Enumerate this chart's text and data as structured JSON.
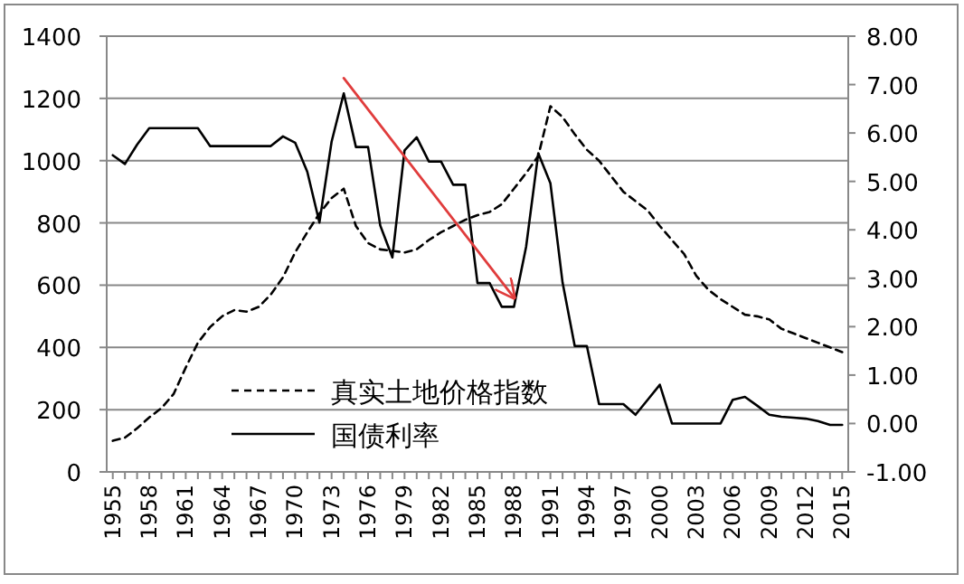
{
  "chart_data": {
    "type": "line",
    "x": [
      1955,
      1956,
      1957,
      1958,
      1959,
      1960,
      1961,
      1962,
      1963,
      1964,
      1965,
      1966,
      1967,
      1968,
      1969,
      1970,
      1971,
      1972,
      1973,
      1974,
      1975,
      1976,
      1977,
      1978,
      1979,
      1980,
      1981,
      1982,
      1983,
      1984,
      1985,
      1986,
      1987,
      1988,
      1989,
      1990,
      1991,
      1992,
      1993,
      1994,
      1995,
      1996,
      1997,
      1998,
      1999,
      2000,
      2001,
      2002,
      2003,
      2004,
      2005,
      2006,
      2007,
      2008,
      2009,
      2010,
      2011,
      2012,
      2013,
      2014,
      2015
    ],
    "series": [
      {
        "name": "真实土地价格指数",
        "color": "#000000",
        "line_style": "dashed",
        "values": [
          100,
          110,
          140,
          175,
          205,
          250,
          335,
          415,
          465,
          500,
          520,
          515,
          530,
          570,
          625,
          705,
          770,
          830,
          880,
          910,
          790,
          735,
          715,
          710,
          705,
          715,
          745,
          770,
          790,
          810,
          825,
          835,
          860,
          910,
          960,
          1015,
          1175,
          1140,
          1085,
          1035,
          1000,
          950,
          900,
          870,
          840,
          790,
          745,
          700,
          630,
          585,
          555,
          530,
          505,
          500,
          490,
          460,
          445,
          430,
          415,
          400,
          385
        ]
      },
      {
        "name": "国债利率",
        "color": "#000000",
        "line_style": "solid",
        "axis": "y2",
        "values": [
          5.54,
          5.36,
          5.76,
          6.1,
          6.1,
          6.1,
          6.1,
          6.1,
          5.73,
          5.73,
          5.73,
          5.73,
          5.73,
          5.73,
          5.93,
          5.8,
          5.2,
          4.15,
          5.82,
          6.82,
          5.71,
          5.71,
          4.09,
          3.43,
          5.64,
          5.91,
          5.41,
          5.41,
          4.93,
          4.93,
          2.9,
          2.9,
          2.41,
          2.41,
          3.65,
          5.58,
          4.96,
          2.91,
          1.6,
          1.6,
          0.4,
          0.4,
          0.4,
          0.18,
          0.49,
          0.8,
          0,
          0,
          0,
          0,
          0,
          0.49,
          0.55,
          0.37,
          0.18,
          0.14,
          0.12,
          0.1,
          0.05,
          -0.03,
          -0.03
        ]
      },
      {
        "type": "line",
        "color": "#e03c3c",
        "line_style": "solid",
        "x": [
          1974,
          1988
        ],
        "values": [
          1265,
          560
        ]
      }
    ],
    "xlim": [
      1954.5,
      2015.5
    ],
    "xticks": [
      1955,
      {
        "value": 1956,
        "label": null
      },
      {
        "value": 1957,
        "label": null
      },
      1958,
      {
        "value": 1959,
        "label": null
      },
      {
        "value": 1960,
        "label": null
      },
      1961,
      {
        "value": 1962,
        "label": null
      },
      {
        "value": 1963,
        "label": null
      },
      1964,
      {
        "value": 1965,
        "label": null
      },
      {
        "value": 1966,
        "label": null
      },
      1967,
      {
        "value": 1968,
        "label": null
      },
      {
        "value": 1969,
        "label": null
      },
      1970,
      {
        "value": 1971,
        "label": null
      },
      {
        "value": 1972,
        "label": null
      },
      1973,
      {
        "value": 1974,
        "label": null
      },
      {
        "value": 1975,
        "label": null
      },
      1976,
      {
        "value": 1977,
        "label": null
      },
      {
        "value": 1978,
        "label": null
      },
      1979,
      {
        "value": 1980,
        "label": null
      },
      {
        "value": 1981,
        "label": null
      },
      1982,
      {
        "value": 1983,
        "label": null
      },
      {
        "value": 1984,
        "label": null
      },
      1985,
      {
        "value": 1986,
        "label": null
      },
      {
        "value": 1987,
        "label": null
      },
      1988,
      {
        "value": 1989,
        "label": null
      },
      {
        "value": 1990,
        "label": null
      },
      1991,
      {
        "value": 1992,
        "label": null
      },
      {
        "value": 1993,
        "label": null
      },
      1994,
      {
        "value": 1995,
        "label": null
      },
      {
        "value": 1996,
        "label": null
      },
      1997,
      {
        "value": 1998,
        "label": null
      },
      {
        "value": 1999,
        "label": null
      },
      2000,
      {
        "value": 2001,
        "label": null
      },
      {
        "value": 2002,
        "label": null
      },
      2003,
      {
        "value": 2004,
        "label": null
      },
      {
        "value": 2005,
        "label": null
      },
      2006,
      {
        "value": 2007,
        "label": null
      },
      {
        "value": 2008,
        "label": null
      },
      2009,
      {
        "value": 2010,
        "label": null
      },
      {
        "value": 2011,
        "label": null
      },
      2012,
      {
        "value": 2013,
        "label": null
      },
      {
        "value": 2014,
        "label": null
      },
      2015
    ],
    "ylim": [
      0,
      1400
    ],
    "yticks": [
      0,
      200,
      400,
      600,
      800,
      1000,
      1200,
      1400
    ],
    "y2lim": [
      -1,
      8
    ],
    "y2ticks": [
      {
        "value": -1,
        "label": "-1.00"
      },
      {
        "value": 0,
        "label": "0.00"
      },
      {
        "value": 1,
        "label": "1.00"
      },
      {
        "value": 2,
        "label": "2.00"
      },
      {
        "value": 3,
        "label": "3.00"
      },
      {
        "value": 4,
        "label": "4.00"
      },
      {
        "value": 5,
        "label": "5.00"
      },
      {
        "value": 6,
        "label": "6.00"
      },
      {
        "value": 7,
        "label": "7.00"
      },
      {
        "value": 8,
        "label": "8.00"
      }
    ],
    "grid": "y",
    "legend": "bottom left"
  }
}
